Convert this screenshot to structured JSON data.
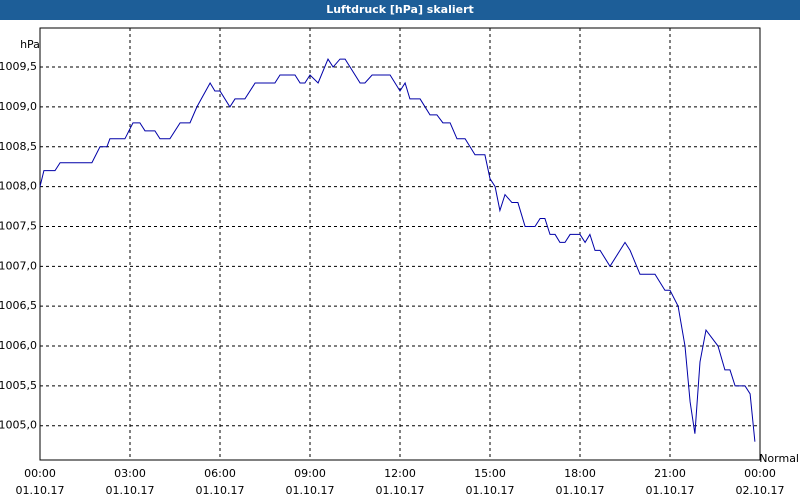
{
  "chart_data": {
    "type": "line",
    "title": "Luftdruck [hPa] skaliert",
    "y_label": "hPa",
    "annotation": "Normal",
    "grid": true,
    "xlim": [
      0,
      24
    ],
    "ylim": [
      1004.57,
      1009.99
    ],
    "xticks": [
      {
        "value": 0,
        "label": "00:00",
        "date": "01.10.17"
      },
      {
        "value": 3,
        "label": "03:00",
        "date": "01.10.17"
      },
      {
        "value": 6,
        "label": "06:00",
        "date": "01.10.17"
      },
      {
        "value": 9,
        "label": "09:00",
        "date": "01.10.17"
      },
      {
        "value": 12,
        "label": "12:00",
        "date": "01.10.17"
      },
      {
        "value": 15,
        "label": "15:00",
        "date": "01.10.17"
      },
      {
        "value": 18,
        "label": "18:00",
        "date": "01.10.17"
      },
      {
        "value": 21,
        "label": "21:00",
        "date": "01.10.17"
      },
      {
        "value": 24,
        "label": "00:00",
        "date": "02.10.17"
      }
    ],
    "yticks": [
      {
        "value": 1005,
        "label": "1005,0"
      },
      {
        "value": 1005.5,
        "label": "1005,5"
      },
      {
        "value": 1006,
        "label": "1006,0"
      },
      {
        "value": 1006.5,
        "label": "1006,5"
      },
      {
        "value": 1007,
        "label": "1007,0"
      },
      {
        "value": 1007.5,
        "label": "1007,5"
      },
      {
        "value": 1008,
        "label": "1008,0"
      },
      {
        "value": 1008.5,
        "label": "1008,5"
      },
      {
        "value": 1009,
        "label": "1009,0"
      },
      {
        "value": 1009.5,
        "label": "1009,5"
      }
    ],
    "x": [
      0,
      0.13,
      0.5,
      0.67,
      1.73,
      2,
      2.23,
      2.33,
      2.83,
      3.1,
      3.33,
      3.5,
      3.83,
      4,
      4.33,
      4.67,
      5,
      5.23,
      5.67,
      5.83,
      6,
      6.33,
      6.5,
      6.83,
      7.17,
      7.83,
      8,
      8.5,
      8.67,
      8.83,
      9,
      9.27,
      9.6,
      9.77,
      10,
      10.17,
      10.67,
      10.83,
      11.07,
      11.67,
      12,
      12.17,
      12.33,
      12.67,
      13,
      13.23,
      13.43,
      13.67,
      13.9,
      14.17,
      14.5,
      14.83,
      15,
      15.17,
      15.33,
      15.5,
      15.73,
      15.93,
      16.17,
      16.5,
      16.67,
      16.83,
      17,
      17.17,
      17.33,
      17.5,
      17.67,
      18,
      18.17,
      18.33,
      18.5,
      18.67,
      19,
      19.5,
      19.67,
      20,
      20.5,
      20.83,
      21,
      21.27,
      21.5,
      21.67,
      21.83,
      22,
      22.2,
      22.4,
      22.6,
      22.83,
      23,
      23.17,
      23.5,
      23.67,
      23.83
    ],
    "series": [
      {
        "color": "#0000a8",
        "values": [
          1008.0,
          1008.2,
          1008.2,
          1008.3,
          1008.3,
          1008.5,
          1008.5,
          1008.6,
          1008.6,
          1008.8,
          1008.8,
          1008.7,
          1008.7,
          1008.6,
          1008.6,
          1008.8,
          1008.8,
          1009.0,
          1009.3,
          1009.2,
          1009.2,
          1009.0,
          1009.1,
          1009.1,
          1009.3,
          1009.3,
          1009.4,
          1009.4,
          1009.3,
          1009.3,
          1009.4,
          1009.3,
          1009.6,
          1009.5,
          1009.6,
          1009.6,
          1009.3,
          1009.3,
          1009.4,
          1009.4,
          1009.2,
          1009.3,
          1009.1,
          1009.1,
          1008.9,
          1008.9,
          1008.8,
          1008.8,
          1008.6,
          1008.6,
          1008.4,
          1008.4,
          1008.1,
          1008.0,
          1007.7,
          1007.9,
          1007.8,
          1007.8,
          1007.5,
          1007.5,
          1007.6,
          1007.6,
          1007.4,
          1007.4,
          1007.3,
          1007.3,
          1007.4,
          1007.4,
          1007.3,
          1007.4,
          1007.2,
          1007.2,
          1007.0,
          1007.3,
          1007.2,
          1006.9,
          1006.9,
          1006.7,
          1006.7,
          1006.5,
          1006.0,
          1005.3,
          1004.9,
          1005.8,
          1006.2,
          1006.1,
          1006.0,
          1005.7,
          1005.7,
          1005.5,
          1005.5,
          1005.4,
          1004.8
        ]
      }
    ]
  }
}
